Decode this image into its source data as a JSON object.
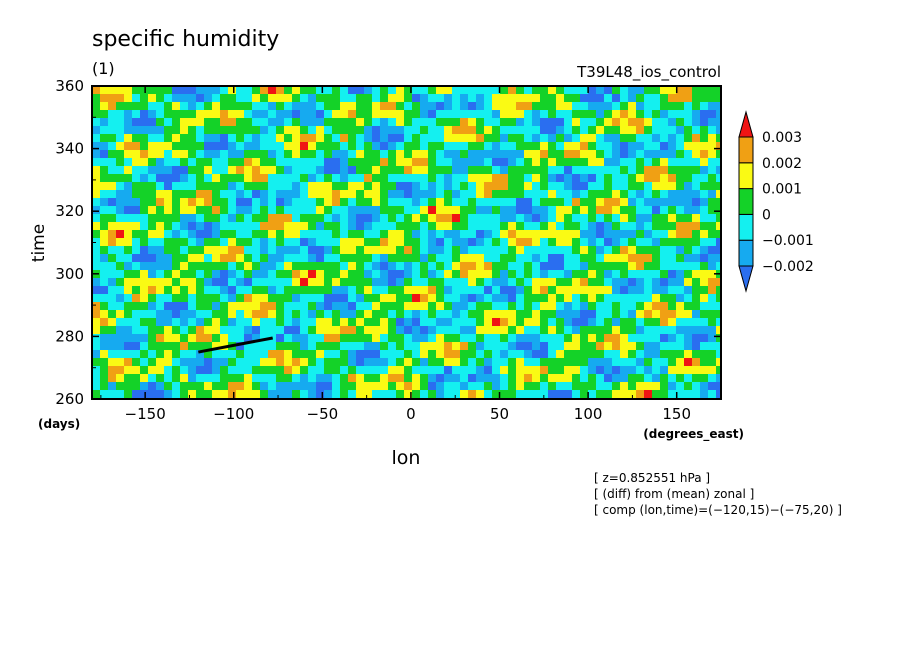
{
  "chart_data": {
    "type": "heatmap",
    "title": "specific humidity",
    "subtitle": "(1)",
    "run_label": "T39L48_ios_control",
    "xlabel": "lon",
    "ylabel": "time",
    "x_unit": "(degrees_east)",
    "y_unit": "(days)",
    "xlim": [
      -180,
      175
    ],
    "ylim": [
      260,
      360
    ],
    "x_ticks": [
      {
        "value": -150,
        "label": "−150"
      },
      {
        "value": -100,
        "label": "−100"
      },
      {
        "value": -50,
        "label": "−50"
      },
      {
        "value": 0,
        "label": "0"
      },
      {
        "value": 50,
        "label": "50"
      },
      {
        "value": 100,
        "label": "100"
      },
      {
        "value": 150,
        "label": "150"
      }
    ],
    "y_ticks": [
      {
        "value": 260,
        "label": "260"
      },
      {
        "value": 280,
        "label": "280"
      },
      {
        "value": 300,
        "label": "300"
      },
      {
        "value": 320,
        "label": "320"
      },
      {
        "value": 340,
        "label": "340"
      },
      {
        "value": 360,
        "label": "360"
      }
    ],
    "levels": [
      -0.002,
      -0.001,
      0,
      0.001,
      0.002,
      0.003
    ],
    "level_labels": [
      "−0.002",
      "−0.001",
      "0",
      "0.001",
      "0.002",
      "0.003"
    ],
    "colors": [
      "#2a6ef0",
      "#16aaf0",
      "#14f0f0",
      "#14d228",
      "#fafa14",
      "#f0a014",
      "#f01414"
    ],
    "composite_line": {
      "from": [
        -120,
        275
      ],
      "to": [
        -78,
        279.5
      ]
    },
    "notes": [
      "[ z=0.852551 hPa ]",
      "[ (diff) from (mean) zonal ]",
      "[ comp (lon,time)=(−120,15)−(−75,20) ]"
    ]
  }
}
